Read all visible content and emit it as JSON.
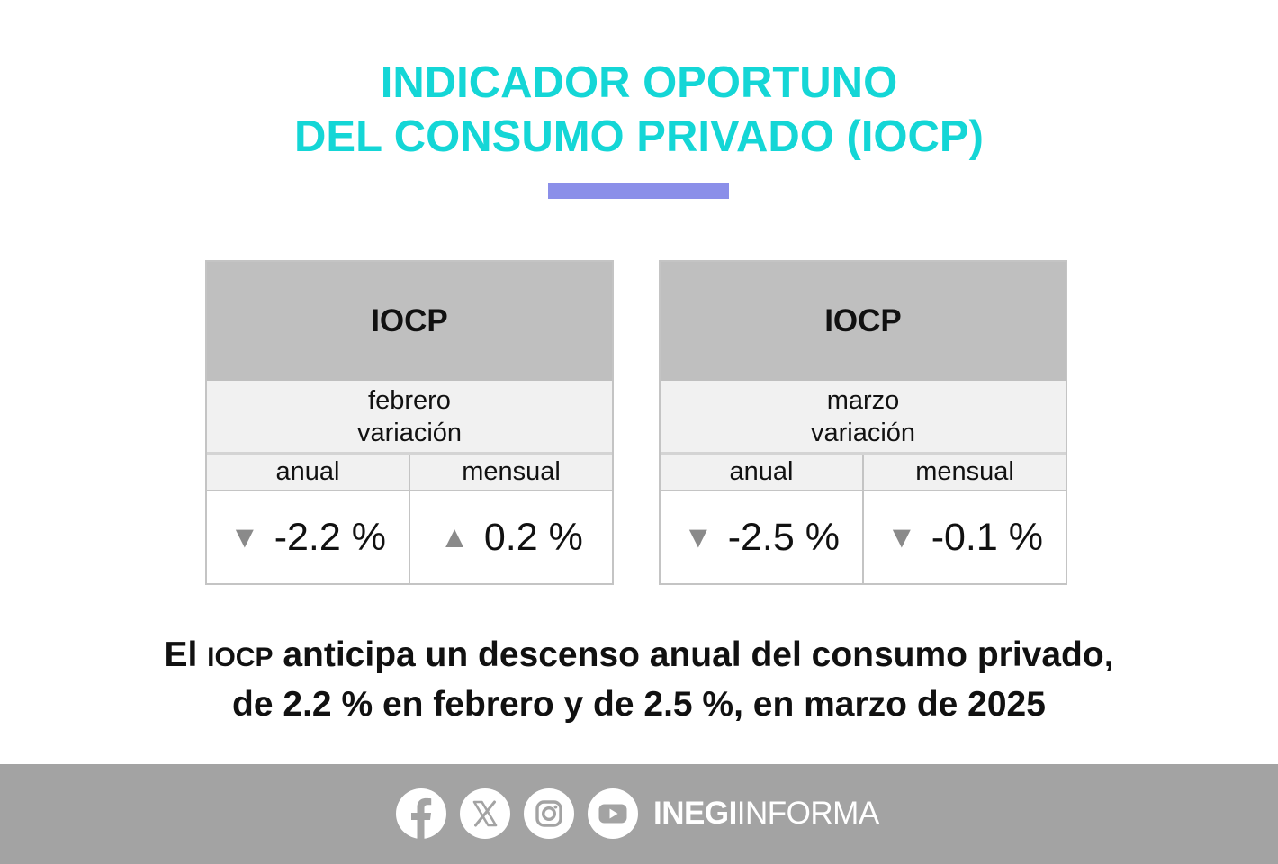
{
  "title": {
    "line1": "INDICADOR OPORTUNO",
    "line2": "DEL CONSUMO PRIVADO (IOCP)"
  },
  "colors": {
    "title": "#14d6d6",
    "accent_bar": "#8b8fe9",
    "card_header": "#bfbfbf",
    "arrow": "#8a8a8a",
    "footer": "#a3a3a3"
  },
  "cards": [
    {
      "header": "IOCP",
      "month": "febrero",
      "subtitle": "variación",
      "col_annual": "anual",
      "col_monthly": "mensual",
      "annual": {
        "direction": "down",
        "arrow": "▼",
        "value": "-2.2 %"
      },
      "monthly": {
        "direction": "up",
        "arrow": "▲",
        "value": "0.2 %"
      }
    },
    {
      "header": "IOCP",
      "month": "marzo",
      "subtitle": "variación",
      "col_annual": "anual",
      "col_monthly": "mensual",
      "annual": {
        "direction": "down",
        "arrow": "▼",
        "value": "-2.5 %"
      },
      "monthly": {
        "direction": "down",
        "arrow": "▼",
        "value": "-0.1 %"
      }
    }
  ],
  "headline": {
    "part1": "El ",
    "acronym": "IOCP",
    "part2": " anticipa un descenso anual del consumo privado,",
    "line2": "de 2.2 % en febrero y de 2.5 %, en marzo de 2025"
  },
  "footer": {
    "icons": [
      "facebook-icon",
      "x-icon",
      "instagram-icon",
      "youtube-icon"
    ],
    "brand_bold": "INEGI",
    "brand_light": "INFORMA"
  }
}
